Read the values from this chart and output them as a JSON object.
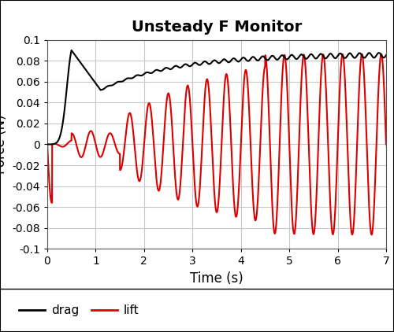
{
  "title": "Unsteady F Monitor",
  "xlabel": "Time (s)",
  "ylabel": "Force (N)",
  "xlim": [
    0,
    7
  ],
  "ylim": [
    -0.1,
    0.1
  ],
  "xticks": [
    0,
    1,
    2,
    3,
    4,
    5,
    6,
    7
  ],
  "yticks": [
    -0.1,
    -0.08,
    -0.06,
    -0.04,
    -0.02,
    0,
    0.02,
    0.04,
    0.06,
    0.08,
    0.1
  ],
  "drag_color": "#000000",
  "lift_color": "#dd0000",
  "legend_labels": [
    "drag",
    "lift"
  ],
  "background_color": "#ffffff",
  "plot_bg_color": "#ffffff",
  "grid_color": "#c8c8c8",
  "title_fontsize": 14,
  "label_fontsize": 12,
  "tick_fontsize": 10,
  "legend_fontsize": 11,
  "line_width": 1.5,
  "drag_peak": 0.09,
  "drag_peak_t": 0.5,
  "drag_valley": 0.052,
  "drag_valley_t": 1.1,
  "drag_final": 0.086,
  "lift_final_amp": 0.087,
  "shed_freq": 2.5
}
